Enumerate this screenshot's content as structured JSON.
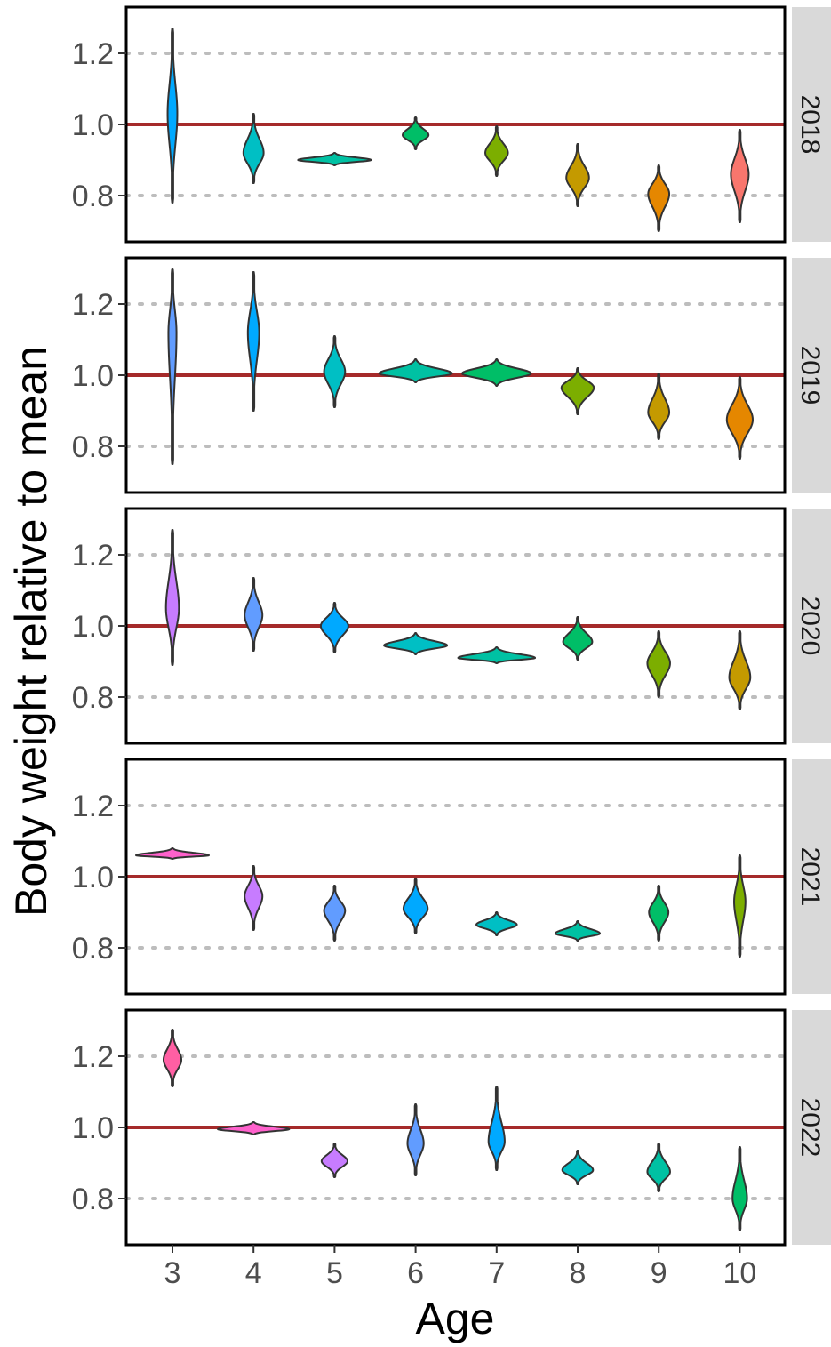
{
  "chart_data": {
    "type": "violin",
    "facet_by": "year",
    "xlabel": "Age",
    "ylabel": "Body weight relative to mean",
    "categories": [
      "3",
      "4",
      "5",
      "6",
      "7",
      "8",
      "9",
      "10"
    ],
    "ylim": [
      0.67,
      1.33
    ],
    "yticks": [
      0.8,
      1.0,
      1.2
    ],
    "ytick_labels": [
      "0.8",
      "1.0",
      "1.2"
    ],
    "reference_line": {
      "y": 1.0,
      "color": "#a52a2a"
    },
    "grid": {
      "horizontal_dotted": [
        0.8,
        1.2
      ]
    },
    "facets": [
      {
        "label": "2018",
        "violins": [
          {
            "age": "3",
            "center": 1.03,
            "min": 0.78,
            "max": 1.27,
            "width": 0.12,
            "color": "#00a9ff"
          },
          {
            "age": "4",
            "center": 0.92,
            "min": 0.835,
            "max": 1.03,
            "width": 0.25,
            "color": "#00bfc4"
          },
          {
            "age": "5",
            "center": 0.9,
            "min": 0.885,
            "max": 0.92,
            "width": 0.9,
            "color": "#00c1a3"
          },
          {
            "age": "6",
            "center": 0.97,
            "min": 0.93,
            "max": 1.02,
            "width": 0.32,
            "color": "#00be67"
          },
          {
            "age": "7",
            "center": 0.92,
            "min": 0.855,
            "max": 0.995,
            "width": 0.28,
            "color": "#7cae00"
          },
          {
            "age": "8",
            "center": 0.85,
            "min": 0.77,
            "max": 0.945,
            "width": 0.28,
            "color": "#c49a00"
          },
          {
            "age": "9",
            "center": 0.805,
            "min": 0.7,
            "max": 0.885,
            "width": 0.26,
            "color": "#e58700"
          },
          {
            "age": "10",
            "center": 0.86,
            "min": 0.725,
            "max": 0.985,
            "width": 0.22,
            "color": "#f8766d"
          }
        ]
      },
      {
        "label": "2019",
        "violins": [
          {
            "age": "3",
            "center": 1.12,
            "min": 0.75,
            "max": 1.3,
            "width": 0.1,
            "color": "#619cff"
          },
          {
            "age": "4",
            "center": 1.12,
            "min": 0.9,
            "max": 1.29,
            "width": 0.14,
            "color": "#00a9ff"
          },
          {
            "age": "5",
            "center": 1.01,
            "min": 0.91,
            "max": 1.11,
            "width": 0.26,
            "color": "#00bfc4"
          },
          {
            "age": "6",
            "center": 1.005,
            "min": 0.98,
            "max": 1.045,
            "width": 0.9,
            "color": "#00c1a3"
          },
          {
            "age": "7",
            "center": 1.005,
            "min": 0.97,
            "max": 1.045,
            "width": 0.85,
            "color": "#00be67"
          },
          {
            "age": "8",
            "center": 0.965,
            "min": 0.89,
            "max": 1.02,
            "width": 0.4,
            "color": "#7cae00"
          },
          {
            "age": "9",
            "center": 0.895,
            "min": 0.82,
            "max": 1.005,
            "width": 0.26,
            "color": "#c49a00"
          },
          {
            "age": "10",
            "center": 0.875,
            "min": 0.765,
            "max": 0.995,
            "width": 0.32,
            "color": "#e58700"
          }
        ]
      },
      {
        "label": "2020",
        "violins": [
          {
            "age": "3",
            "center": 1.05,
            "min": 0.89,
            "max": 1.27,
            "width": 0.16,
            "color": "#c77cff"
          },
          {
            "age": "4",
            "center": 1.03,
            "min": 0.93,
            "max": 1.135,
            "width": 0.22,
            "color": "#619cff"
          },
          {
            "age": "5",
            "center": 1.0,
            "min": 0.925,
            "max": 1.065,
            "width": 0.34,
            "color": "#00a9ff"
          },
          {
            "age": "6",
            "center": 0.945,
            "min": 0.92,
            "max": 0.98,
            "width": 0.78,
            "color": "#00bfc4"
          },
          {
            "age": "7",
            "center": 0.91,
            "min": 0.895,
            "max": 0.94,
            "width": 0.95,
            "color": "#00c1a3"
          },
          {
            "age": "8",
            "center": 0.955,
            "min": 0.905,
            "max": 1.025,
            "width": 0.36,
            "color": "#00be67"
          },
          {
            "age": "9",
            "center": 0.895,
            "min": 0.8,
            "max": 0.985,
            "width": 0.28,
            "color": "#7cae00"
          },
          {
            "age": "10",
            "center": 0.855,
            "min": 0.765,
            "max": 0.985,
            "width": 0.26,
            "color": "#c49a00"
          }
        ]
      },
      {
        "label": "2021",
        "violins": [
          {
            "age": "3",
            "center": 1.06,
            "min": 1.05,
            "max": 1.08,
            "width": 0.9,
            "color": "#ff61cc"
          },
          {
            "age": "4",
            "center": 0.945,
            "min": 0.85,
            "max": 1.03,
            "width": 0.22,
            "color": "#c77cff"
          },
          {
            "age": "5",
            "center": 0.905,
            "min": 0.82,
            "max": 0.975,
            "width": 0.26,
            "color": "#619cff"
          },
          {
            "age": "6",
            "center": 0.91,
            "min": 0.84,
            "max": 0.995,
            "width": 0.3,
            "color": "#00a9ff"
          },
          {
            "age": "7",
            "center": 0.865,
            "min": 0.835,
            "max": 0.9,
            "width": 0.5,
            "color": "#00bfc4"
          },
          {
            "age": "8",
            "center": 0.84,
            "min": 0.82,
            "max": 0.875,
            "width": 0.55,
            "color": "#00c1a3"
          },
          {
            "age": "9",
            "center": 0.9,
            "min": 0.82,
            "max": 0.975,
            "width": 0.24,
            "color": "#00be67"
          },
          {
            "age": "10",
            "center": 0.93,
            "min": 0.775,
            "max": 1.06,
            "width": 0.14,
            "color": "#7cae00"
          }
        ]
      },
      {
        "label": "2022",
        "violins": [
          {
            "age": "3",
            "center": 1.19,
            "min": 1.115,
            "max": 1.275,
            "width": 0.22,
            "color": "#ff5fa3"
          },
          {
            "age": "4",
            "center": 0.995,
            "min": 0.98,
            "max": 1.015,
            "width": 0.88,
            "color": "#ff61cc"
          },
          {
            "age": "5",
            "center": 0.905,
            "min": 0.86,
            "max": 0.955,
            "width": 0.32,
            "color": "#c77cff"
          },
          {
            "age": "6",
            "center": 0.955,
            "min": 0.865,
            "max": 1.065,
            "width": 0.2,
            "color": "#619cff"
          },
          {
            "age": "7",
            "center": 0.96,
            "min": 0.88,
            "max": 1.115,
            "width": 0.2,
            "color": "#00a9ff"
          },
          {
            "age": "8",
            "center": 0.88,
            "min": 0.84,
            "max": 0.935,
            "width": 0.38,
            "color": "#00bfc4"
          },
          {
            "age": "9",
            "center": 0.875,
            "min": 0.82,
            "max": 0.955,
            "width": 0.28,
            "color": "#00c1a3"
          },
          {
            "age": "10",
            "center": 0.8,
            "min": 0.71,
            "max": 0.945,
            "width": 0.18,
            "color": "#00be67"
          }
        ]
      }
    ]
  }
}
